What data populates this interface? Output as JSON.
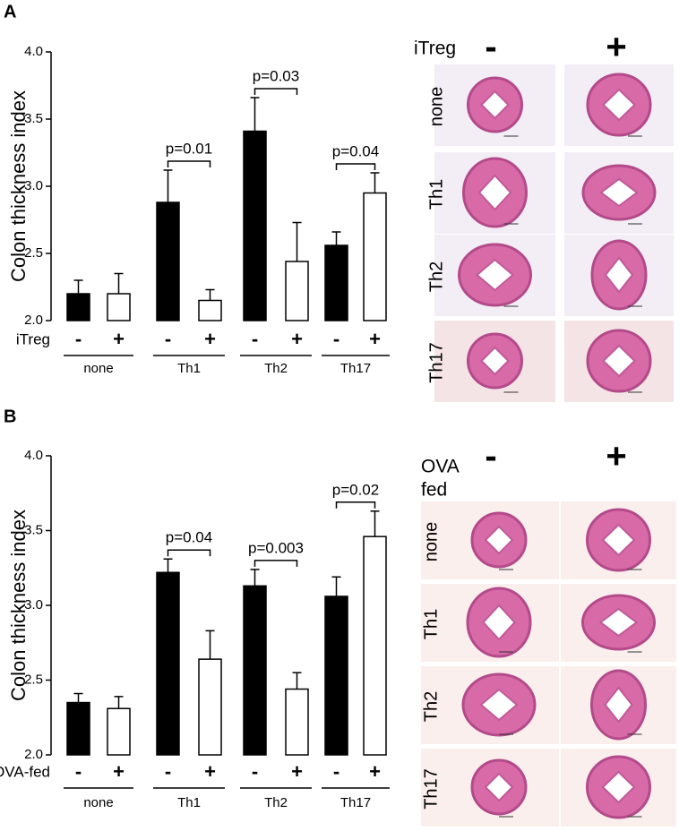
{
  "panel_labels": [
    "A",
    "B"
  ],
  "chart_data": [
    {
      "type": "bar",
      "ylabel": "Colon thickness index",
      "xlabel": "iTreg",
      "categories": [
        "-",
        "+",
        "-",
        "+",
        "-",
        "+",
        "-",
        "+"
      ],
      "values": [
        2.2,
        2.2,
        2.88,
        2.15,
        3.41,
        2.44,
        2.56,
        2.95
      ],
      "errors": [
        0.1,
        0.15,
        0.24,
        0.08,
        0.25,
        0.29,
        0.1,
        0.15
      ],
      "colors": [
        "#000000",
        "#ffffff",
        "#000000",
        "#ffffff",
        "#000000",
        "#ffffff",
        "#000000",
        "#ffffff"
      ],
      "groups": [
        {
          "name": "none"
        },
        {
          "name": "Th1",
          "p": "p=0.01"
        },
        {
          "name": "Th2",
          "p": "p=0.03"
        },
        {
          "name": "Th17",
          "p": "p=0.04"
        }
      ],
      "ylim": [
        2.0,
        4.0
      ],
      "yticks": [
        {
          "value": 2.0,
          "label": "2.0"
        },
        {
          "value": 2.5,
          "label": "2.5"
        },
        {
          "value": 3.0,
          "label": "3.0"
        },
        {
          "value": 3.5,
          "label": "3.5"
        },
        {
          "value": 4.0,
          "label": "4.0"
        }
      ]
    },
    {
      "type": "bar",
      "ylabel": "Colon thickness index",
      "xlabel": "OVA-fed",
      "categories": [
        "-",
        "+",
        "-",
        "+",
        "-",
        "+",
        "-",
        "+"
      ],
      "values": [
        2.35,
        2.31,
        3.22,
        2.64,
        3.13,
        2.44,
        3.06,
        3.46
      ],
      "errors": [
        0.06,
        0.08,
        0.09,
        0.19,
        0.11,
        0.11,
        0.13,
        0.17
      ],
      "colors": [
        "#000000",
        "#ffffff",
        "#000000",
        "#ffffff",
        "#000000",
        "#ffffff",
        "#000000",
        "#ffffff"
      ],
      "groups": [
        {
          "name": "none"
        },
        {
          "name": "Th1",
          "p": "p=0.04"
        },
        {
          "name": "Th2",
          "p": "p=0.003"
        },
        {
          "name": "Th17",
          "p": "p=0.02"
        }
      ],
      "ylim": [
        2.0,
        4.0
      ],
      "yticks": [
        {
          "value": 2.0,
          "label": "2.0"
        },
        {
          "value": 2.5,
          "label": "2.5"
        },
        {
          "value": 3.0,
          "label": "3.0"
        },
        {
          "value": 3.5,
          "label": "3.5"
        },
        {
          "value": 4.0,
          "label": "4.0"
        }
      ]
    }
  ],
  "histology": [
    {
      "header": [
        "iTreg"
      ],
      "columns": [
        "-",
        "+"
      ],
      "rows": [
        "none",
        "Th1",
        "Th2",
        "Th17"
      ]
    },
    {
      "header": [
        "OVA",
        "fed"
      ],
      "columns": [
        "-",
        "+"
      ],
      "rows": [
        "none",
        "Th1",
        "Th2",
        "Th17"
      ]
    }
  ]
}
